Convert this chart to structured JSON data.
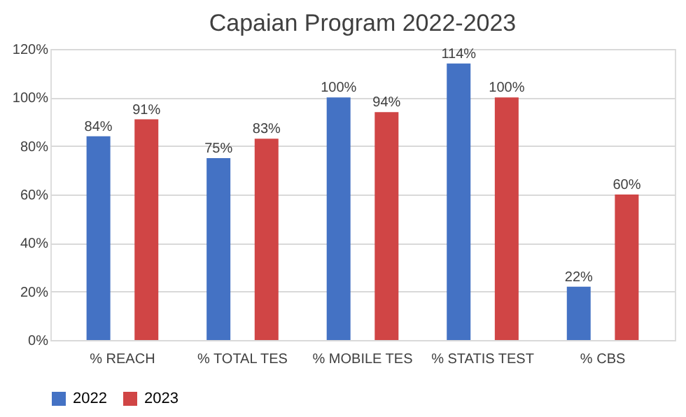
{
  "chart_data": {
    "type": "bar",
    "title": "Capaian Program 2022-2023",
    "categories": [
      "% REACH",
      "% TOTAL TES",
      "% MOBILE TES",
      "% STATIS TEST",
      "% CBS"
    ],
    "series": [
      {
        "name": "2022",
        "color": "#4472c4",
        "values": [
          84,
          75,
          100,
          114,
          22
        ],
        "value_labels": [
          "84%",
          "75%",
          "100%",
          "114%",
          "22%"
        ]
      },
      {
        "name": "2023",
        "color": "#d04545",
        "values": [
          91,
          83,
          94,
          100,
          60
        ],
        "value_labels": [
          "91%",
          "83%",
          "94%",
          "100%",
          "60%"
        ]
      }
    ],
    "ylim": [
      0,
      120
    ],
    "yticks": [
      {
        "value": 0,
        "label": "0%"
      },
      {
        "value": 20,
        "label": "20%"
      },
      {
        "value": 40,
        "label": "40%"
      },
      {
        "value": 60,
        "label": "60%"
      },
      {
        "value": 80,
        "label": "80%"
      },
      {
        "value": 100,
        "label": "100%"
      },
      {
        "value": 120,
        "label": "120%"
      }
    ],
    "grid": "y",
    "legend": "bottom"
  }
}
